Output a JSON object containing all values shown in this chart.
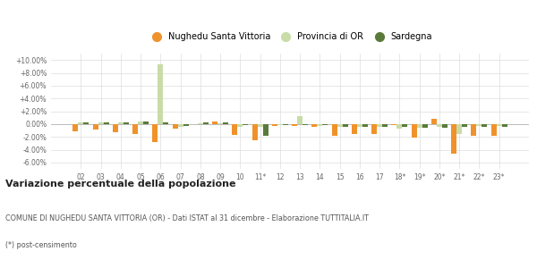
{
  "years": [
    "02",
    "03",
    "04",
    "05",
    "06",
    "07",
    "08",
    "09",
    "10",
    "11*",
    "12",
    "13",
    "14",
    "15",
    "16",
    "17",
    "18*",
    "19*",
    "20*",
    "21*",
    "22*",
    "23*"
  ],
  "nughedu": [
    -1.1,
    -0.9,
    -1.3,
    -1.5,
    -2.8,
    -0.7,
    0.0,
    0.4,
    -1.7,
    -2.5,
    -0.3,
    -0.3,
    -0.5,
    -1.8,
    -1.5,
    -1.5,
    -0.1,
    -2.1,
    0.8,
    -4.6,
    -1.8,
    -1.8
  ],
  "provincia": [
    0.3,
    0.2,
    0.3,
    0.4,
    9.3,
    -0.5,
    0.1,
    0.1,
    -0.4,
    -0.5,
    -0.2,
    1.3,
    -0.3,
    -0.4,
    -0.5,
    -0.5,
    -0.7,
    -0.6,
    -0.5,
    -1.5,
    -0.3,
    -0.3
  ],
  "sardegna": [
    0.2,
    0.2,
    0.3,
    0.4,
    0.3,
    -0.3,
    0.2,
    0.2,
    -0.2,
    -1.9,
    -0.1,
    -0.1,
    -0.2,
    -0.4,
    -0.4,
    -0.4,
    -0.5,
    -0.6,
    -0.6,
    -0.5,
    -0.4,
    -0.4
  ],
  "color_nughedu": "#f0922b",
  "color_provincia": "#c8dca8",
  "color_sardegna": "#5a7a3a",
  "ylim_min": -7.0,
  "ylim_max": 11.0,
  "yticks": [
    -6.0,
    -4.0,
    -2.0,
    0.0,
    2.0,
    4.0,
    6.0,
    8.0,
    10.0
  ],
  "ytick_labels": [
    "-6.00%",
    "-4.00%",
    "-2.00%",
    "0.00%",
    "+2.00%",
    "+4.00%",
    "+6.00%",
    "+8.00%",
    "+10.00%"
  ],
  "title": "Variazione percentuale della popolazione",
  "subtitle": "COMUNE DI NUGHEDU SANTA VITTORIA (OR) - Dati ISTAT al 31 dicembre - Elaborazione TUTTITALIA.IT",
  "footnote": "(*) post-censimento",
  "legend_labels": [
    "Nughedu Santa Vittoria",
    "Provincia di OR",
    "Sardegna"
  ],
  "background_color": "#ffffff",
  "grid_color": "#dddddd"
}
